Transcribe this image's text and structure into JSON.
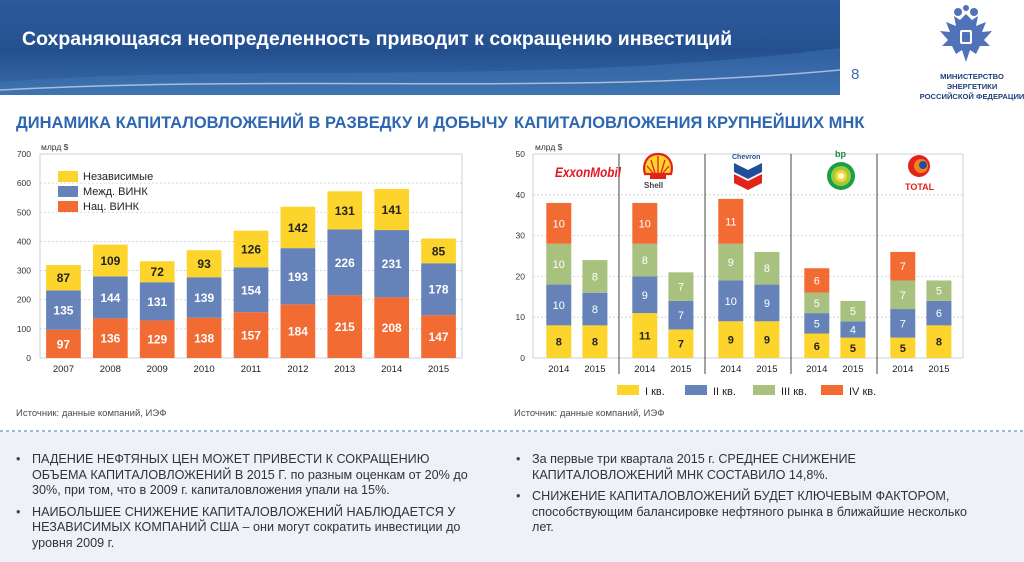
{
  "header": {
    "title": "Сохраняющаяся неопределенность приводит к сокращению инвестиций",
    "page_number": "8",
    "ministry_line1": "МИНИСТЕРСТВО ЭНЕРГЕТИКИ",
    "ministry_line2": "РОССИЙСКОЙ ФЕДЕРАЦИИ"
  },
  "left_panel": {
    "title": "ДИНАМИКА КАПИТАЛОВЛОЖЕНИЙ В РАЗВЕДКУ И ДОБЫЧУ",
    "source": "Источник: данные компаний, ИЭФ"
  },
  "right_panel": {
    "title": "КАПИТАЛОВЛОЖЕНИЯ КРУПНЕЙШИХ МНК",
    "source": "Источник: данные компаний, ИЭФ"
  },
  "colors": {
    "yellow": "#fdd42b",
    "blue": "#6583b8",
    "orange": "#f26b32",
    "green": "#a9c17f"
  },
  "chart_data": [
    {
      "type": "bar",
      "stacked": true,
      "ylabel": "млрд $",
      "ylim": [
        0,
        700
      ],
      "yticks": [
        0,
        100,
        200,
        300,
        400,
        500,
        600,
        700
      ],
      "grid": true,
      "legend_position": "top-left",
      "categories": [
        "2007",
        "2008",
        "2009",
        "2010",
        "2011",
        "2012",
        "2013",
        "2014",
        "2015"
      ],
      "series": [
        {
          "name": "Нац. ВИНК",
          "color": "orange",
          "values": [
            97,
            136,
            129,
            138,
            157,
            184,
            215,
            208,
            147
          ]
        },
        {
          "name": "Межд. ВИНК",
          "color": "blue",
          "values": [
            135,
            144,
            131,
            139,
            154,
            193,
            226,
            231,
            178
          ]
        },
        {
          "name": "Независимые",
          "color": "yellow",
          "values": [
            87,
            109,
            72,
            93,
            126,
            142,
            131,
            141,
            85
          ]
        }
      ],
      "legend_order": [
        "Независимые",
        "Межд. ВИНК",
        "Нац. ВИНК"
      ]
    },
    {
      "type": "bar",
      "stacked": true,
      "ylabel": "млрд $",
      "ylim": [
        0,
        50
      ],
      "yticks": [
        0,
        10,
        20,
        30,
        40,
        50
      ],
      "grid": true,
      "legend_position": "bottom",
      "companies": [
        {
          "logo": "ExxonMobil",
          "x": [
            "2014",
            "2015"
          ]
        },
        {
          "logo": "Shell",
          "x": [
            "2014",
            "2015"
          ]
        },
        {
          "logo": "Chevron",
          "x": [
            "2014",
            "2015"
          ]
        },
        {
          "logo": "bp",
          "x": [
            "2014",
            "2015"
          ]
        },
        {
          "logo": "TOTAL",
          "x": [
            "2014",
            "2015"
          ]
        }
      ],
      "series": [
        {
          "name": "I кв.",
          "color": "yellow",
          "values": [
            8,
            8,
            11,
            7,
            9,
            9,
            6,
            5,
            5,
            8
          ]
        },
        {
          "name": "II кв.",
          "color": "blue",
          "values": [
            10,
            8,
            9,
            7,
            10,
            9,
            5,
            4,
            7,
            6
          ]
        },
        {
          "name": "III кв.",
          "color": "green",
          "values": [
            10,
            8,
            8,
            7,
            9,
            8,
            5,
            5,
            7,
            5
          ]
        },
        {
          "name": "IV кв.",
          "color": "orange",
          "values": [
            10,
            null,
            10,
            null,
            11,
            null,
            6,
            null,
            7,
            null
          ]
        }
      ]
    }
  ],
  "bullets_left": [
    "ПАДЕНИЕ НЕФТЯНЫХ ЦЕН МОЖЕТ ПРИВЕСТИ К СОКРАЩЕНИЮ ОБЪЕМА КАПИТАЛОВЛОЖЕНИЙ В 2015 Г. по разным оценкам от 20% до 30%, при том, что в 2009 г. капиталовложения упали на 15%.",
    "НАИБОЛЬШЕЕ СНИЖЕНИЕ КАПИТАЛОВЛОЖЕНИЙ НАБЛЮДАЕТСЯ У НЕЗАВИСИМЫХ КОМПАНИЙ США – они могут сократить инвестиции до уровня 2009 г."
  ],
  "bullets_right": [
    "За первые три квартала 2015 г. СРЕДНЕЕ СНИЖЕНИЕ КАПИТАЛОВЛОЖЕНИЙ МНК СОСТАВИЛО 14,8%.",
    "СНИЖЕНИЕ КАПИТАЛОВЛОЖЕНИЙ БУДЕТ КЛЮЧЕВЫМ ФАКТОРОМ, способствующим балансировке нефтяного рынка в ближайшие несколько лет."
  ]
}
